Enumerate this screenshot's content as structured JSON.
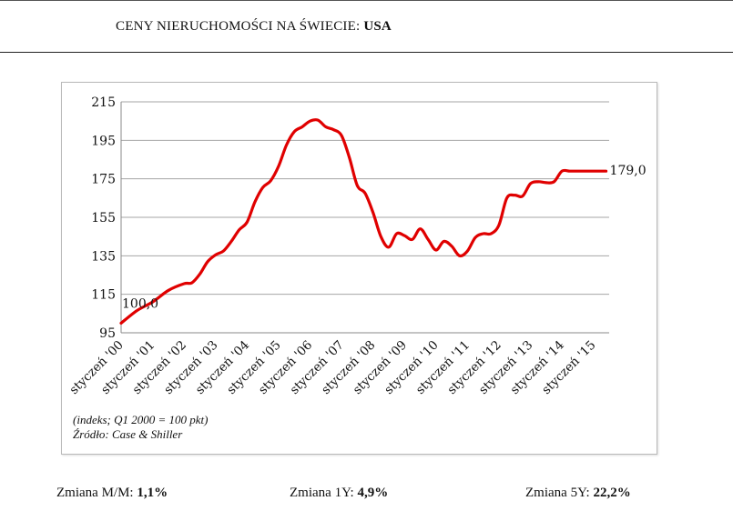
{
  "header": {
    "title_prefix": "CENY NIERUCHOMOŚCI NA ŚWIECIE:",
    "title_country": "USA"
  },
  "notes": {
    "index_note": "(indeks; Q1 2000 = 100 pkt)",
    "source": "Źródło: Case & Shiller"
  },
  "stats": {
    "mm_label": "Zmiana M/M:",
    "mm_value": "1,1%",
    "y1_label": "Zmiana 1Y:",
    "y1_value": "4,9%",
    "y5_label": "Zmiana 5Y:",
    "y5_value": "22,2%"
  },
  "colors": {
    "line": "#e00000",
    "grid": "#a6a6a6"
  },
  "chart_data": {
    "type": "line",
    "title": "",
    "xlabel": "",
    "ylabel": "",
    "ylim": [
      95,
      215
    ],
    "yticks": [
      95,
      115,
      135,
      155,
      175,
      195,
      215
    ],
    "xlim": [
      2000,
      2015.5
    ],
    "categories": [
      "styczeń '00",
      "styczeń '01",
      "styczeń '02",
      "styczeń '03",
      "styczeń '04",
      "styczeń '05",
      "styczeń '06",
      "styczeń '07",
      "styczeń '08",
      "styczeń '09",
      "styczeń '10",
      "styczeń '11",
      "styczeń '12",
      "styczeń '13",
      "styczeń '14",
      "styczeń '15"
    ],
    "series": [
      {
        "name": "Case & Shiller",
        "x": [
          2000.0,
          2000.5,
          2001.0,
          2001.5,
          2002.0,
          2002.25,
          2002.5,
          2002.75,
          2003.0,
          2003.25,
          2003.5,
          2003.75,
          2004.0,
          2004.25,
          2004.5,
          2004.75,
          2005.0,
          2005.25,
          2005.5,
          2005.75,
          2006.0,
          2006.25,
          2006.5,
          2006.75,
          2007.0,
          2007.25,
          2007.5,
          2007.75,
          2008.0,
          2008.25,
          2008.5,
          2008.75,
          2009.0,
          2009.25,
          2009.5,
          2009.75,
          2010.0,
          2010.25,
          2010.5,
          2010.75,
          2011.0,
          2011.25,
          2011.5,
          2011.75,
          2012.0,
          2012.25,
          2012.5,
          2012.75,
          2013.0,
          2013.25,
          2013.5,
          2013.75,
          2014.0,
          2014.25,
          2014.5,
          2014.75,
          2015.0,
          2015.25,
          2015.4
        ],
        "values": [
          100.0,
          106.5,
          111.0,
          117.0,
          120.5,
          121.0,
          125.5,
          132.0,
          135.5,
          137.5,
          142.5,
          148.5,
          152.5,
          163.0,
          170.5,
          174.0,
          181.5,
          192.5,
          199.5,
          202.0,
          205.0,
          205.5,
          202.0,
          200.5,
          197.5,
          186.0,
          171.5,
          167.5,
          157.5,
          145.0,
          139.5,
          146.5,
          145.5,
          143.5,
          149.0,
          143.5,
          138.0,
          142.5,
          140.0,
          135.0,
          137.5,
          144.5,
          146.5,
          146.5,
          151.0,
          165.0,
          166.5,
          166.0,
          172.5,
          173.5,
          173.0,
          173.5,
          179.0,
          179.0,
          179.0,
          179.0,
          179.0,
          179.0,
          179.0
        ],
        "note": "x in years; values read from index gridlines"
      }
    ],
    "annotations": [
      {
        "text": "100,0",
        "x": 2000.0,
        "y": 100.0
      },
      {
        "text": "179,0",
        "x": 2015.4,
        "y": 179.0
      }
    ]
  }
}
